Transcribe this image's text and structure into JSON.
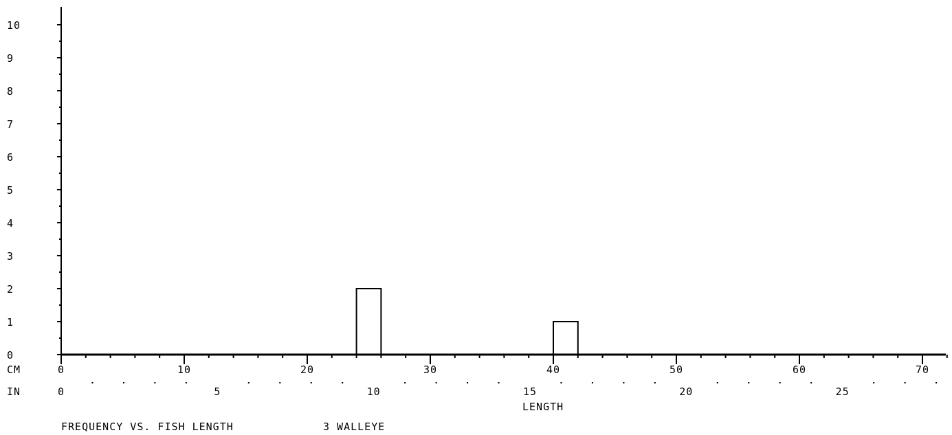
{
  "chart_data": {
    "type": "bar",
    "title": "FREQUENCY VS. FISH LENGTH",
    "subtitle": "3 WALLEYE",
    "xlabel": "LENGTH",
    "ylabel": "",
    "x_unit_labels": [
      "CM",
      "IN"
    ],
    "xlim_cm": [
      0,
      72
    ],
    "ylim": [
      0,
      10
    ],
    "y_ticks": [
      0,
      1,
      2,
      3,
      4,
      5,
      6,
      7,
      8,
      9,
      10
    ],
    "cm_ticks": [
      0,
      10,
      20,
      30,
      40,
      50,
      60,
      70
    ],
    "in_ticks": [
      0,
      5,
      10,
      15,
      20,
      25
    ],
    "bars": [
      {
        "x_start_cm": 24,
        "x_end_cm": 26,
        "value": 2
      },
      {
        "x_start_cm": 40,
        "x_end_cm": 42,
        "value": 1
      }
    ],
    "grid": false,
    "legend": "none",
    "colors": {
      "axis": "#000000",
      "bar_stroke": "#000000",
      "bar_fill": "#ffffff",
      "background": "#ffffff"
    }
  }
}
